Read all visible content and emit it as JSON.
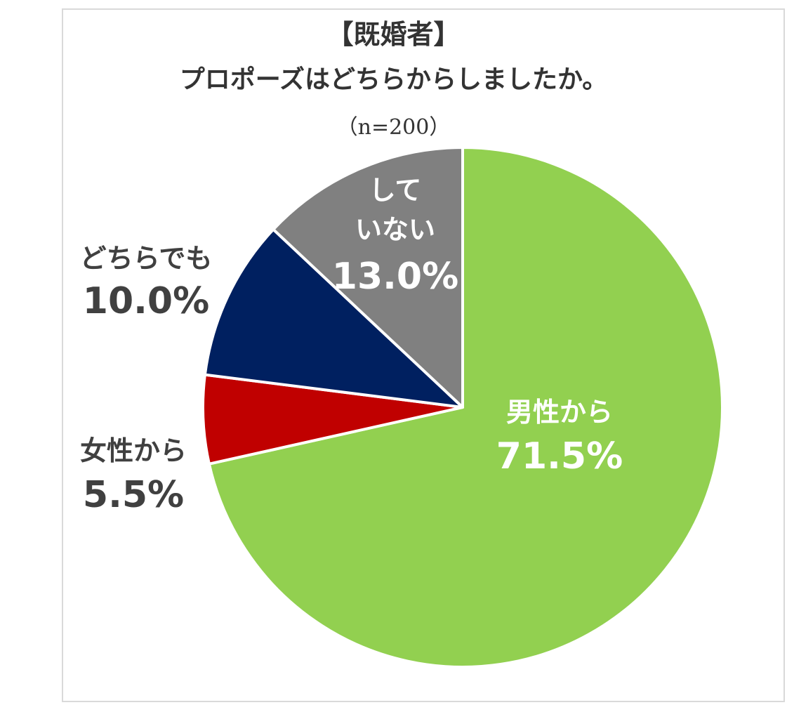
{
  "chart_data": {
    "type": "pie",
    "title": "【既婚者】",
    "subtitle": "プロポーズはどちらからしましたか。",
    "note": "（n=200）",
    "slices": [
      {
        "label": "男性から",
        "value_text": "71.5%",
        "value": 71.5,
        "color": "#92d050",
        "label_color": "#ffffff"
      },
      {
        "label": "女性から",
        "value_text": "5.5%",
        "value": 5.5,
        "color": "#c00000",
        "label_color": "#404040"
      },
      {
        "label": "どちらでも",
        "value_text": "10.0%",
        "value": 10.0,
        "color": "#002060",
        "label_color": "#404040"
      },
      {
        "label_lines": [
          "して",
          "いない"
        ],
        "value_text": "13.0%",
        "value": 13.0,
        "color": "#808080",
        "label_color": "#ffffff"
      }
    ],
    "start_angle": "12 o'clock",
    "direction": "clockwise",
    "legend": "none"
  }
}
